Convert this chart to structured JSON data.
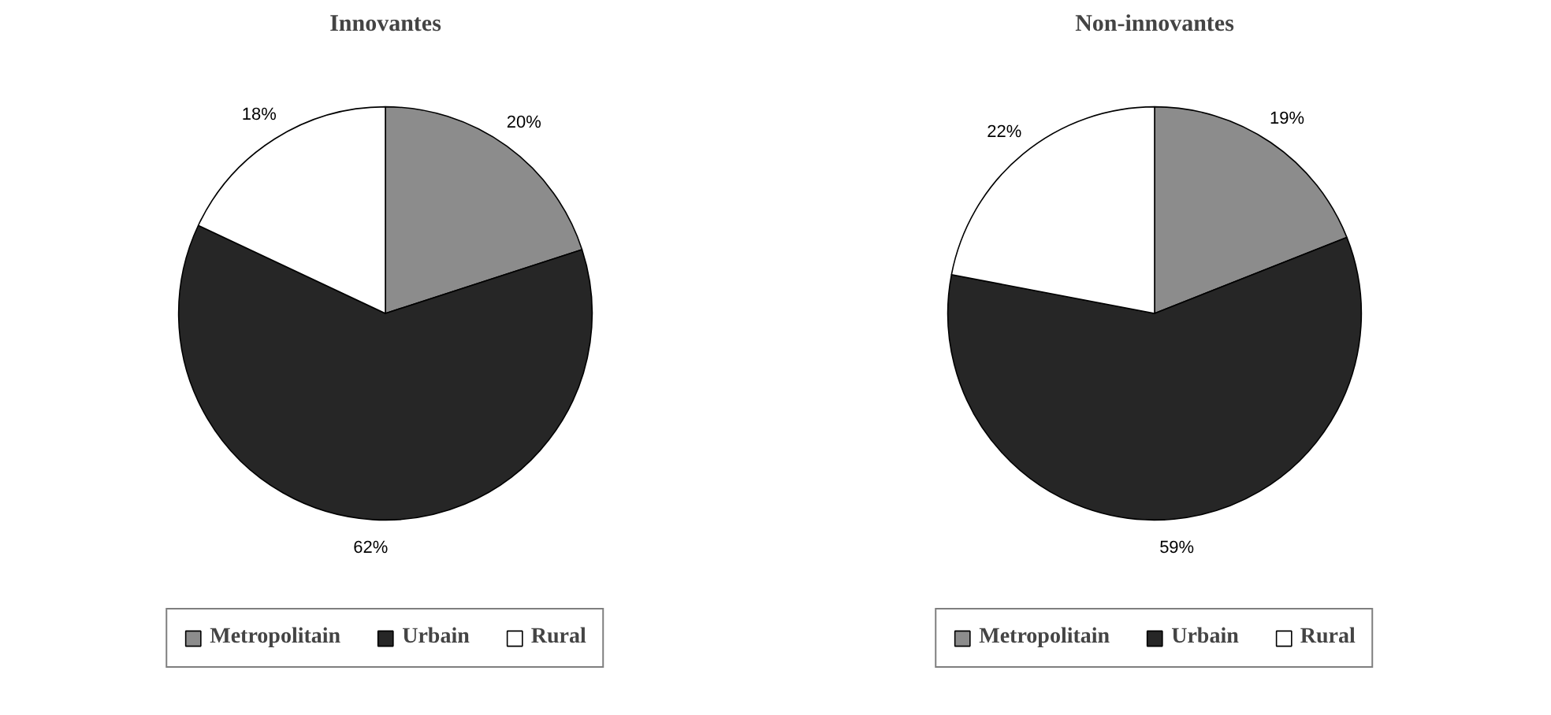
{
  "chart_data": [
    {
      "type": "pie",
      "title": "Innovantes",
      "categories": [
        "Metropolitain",
        "Urbain",
        "Rural"
      ],
      "values": [
        20,
        62,
        18
      ],
      "value_labels": [
        "20%",
        "62%",
        "18%"
      ],
      "colors": [
        "#8c8c8c",
        "#262626",
        "#ffffff"
      ],
      "legend": "bottom"
    },
    {
      "type": "pie",
      "title": "Non-innovantes",
      "categories": [
        "Metropolitain",
        "Urbain",
        "Rural"
      ],
      "values": [
        19,
        59,
        22
      ],
      "value_labels": [
        "19%",
        "59%",
        "22%"
      ],
      "colors": [
        "#8c8c8c",
        "#262626",
        "#ffffff"
      ],
      "legend": "bottom"
    }
  ]
}
